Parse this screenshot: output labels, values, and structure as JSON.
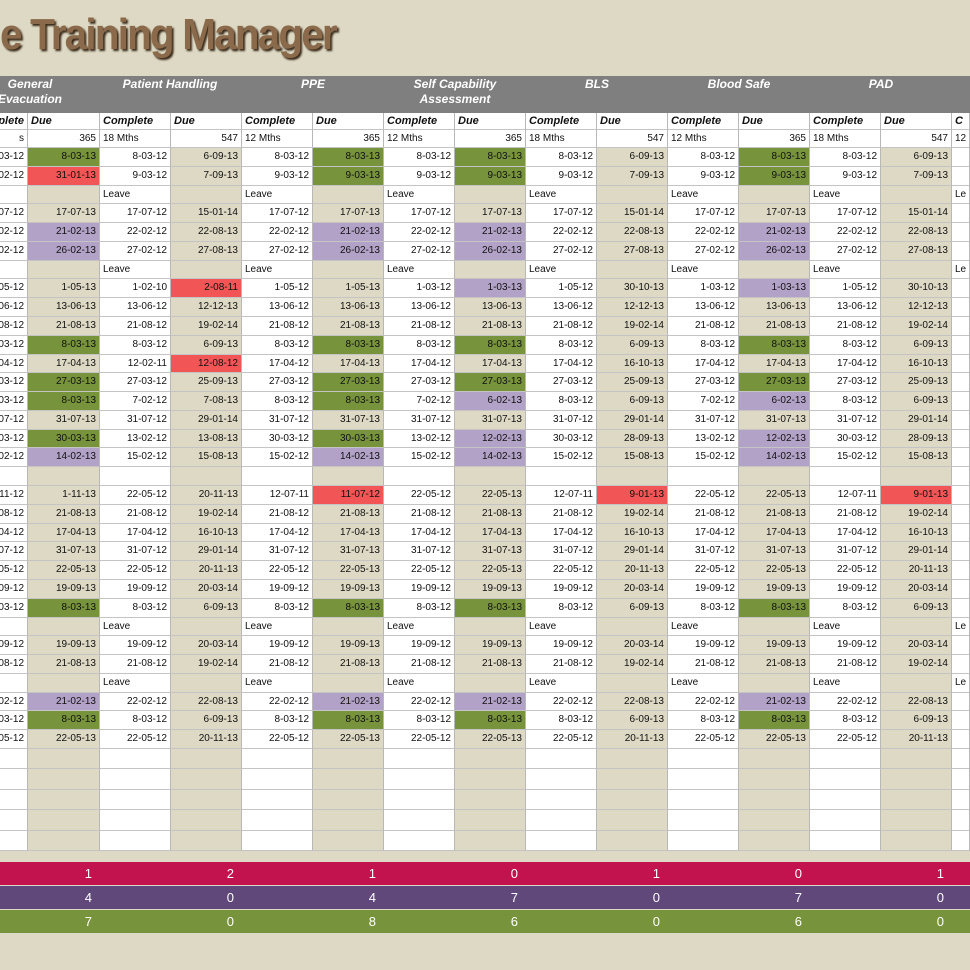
{
  "title": "e Training Manager",
  "fills": {
    "green": "#77933c",
    "red": "#f25555",
    "purple": "#b3a2c7"
  },
  "groups": [
    {
      "lines": [
        "General",
        "Evacuation"
      ]
    },
    {
      "lines": [
        "Patient Handling"
      ]
    },
    {
      "lines": [
        "PPE"
      ]
    },
    {
      "lines": [
        "Self Capability",
        "Assessment"
      ]
    },
    {
      "lines": [
        "BLS"
      ]
    },
    {
      "lines": [
        "Blood Safe"
      ]
    },
    {
      "lines": [
        "PAD"
      ]
    }
  ],
  "subheader": [
    "plete",
    "Due",
    "Complete",
    "Due",
    "Complete",
    "Due",
    "Complete",
    "Due",
    "Complete",
    "Due",
    "Complete",
    "Due",
    "Complete",
    "Due",
    "C"
  ],
  "frequency": [
    "s",
    365,
    "18 Mths",
    547,
    "12 Mths",
    365,
    "12 Mths",
    365,
    "18 Mths",
    547,
    "12 Mths",
    365,
    "18 Mths",
    547,
    "12"
  ],
  "rows": [
    [
      "-03-12",
      {
        "text": "8-03-13",
        "fill": "green"
      },
      "8-03-12",
      "6-09-13",
      "8-03-12",
      {
        "text": "8-03-13",
        "fill": "green"
      },
      "8-03-12",
      {
        "text": "8-03-13",
        "fill": "green"
      },
      "8-03-12",
      "6-09-13",
      "8-03-12",
      {
        "text": "8-03-13",
        "fill": "green"
      },
      "8-03-12",
      "6-09-13",
      null
    ],
    [
      "-02-12",
      {
        "text": "31-01-13",
        "fill": "red"
      },
      "9-03-12",
      "7-09-13",
      "9-03-12",
      {
        "text": "9-03-13",
        "fill": "green"
      },
      "9-03-12",
      {
        "text": "9-03-13",
        "fill": "green"
      },
      "9-03-12",
      "7-09-13",
      "9-03-12",
      {
        "text": "9-03-13",
        "fill": "green"
      },
      "9-03-12",
      "7-09-13",
      null
    ],
    [
      null,
      null,
      "Leave",
      null,
      "Leave",
      null,
      "Leave",
      null,
      "Leave",
      null,
      "Leave",
      null,
      "Leave",
      null,
      "Le"
    ],
    [
      "-07-12",
      "17-07-13",
      "17-07-12",
      "15-01-14",
      "17-07-12",
      "17-07-13",
      "17-07-12",
      "17-07-13",
      "17-07-12",
      "15-01-14",
      "17-07-12",
      "17-07-13",
      "17-07-12",
      "15-01-14",
      null
    ],
    [
      "-02-12",
      {
        "text": "21-02-13",
        "fill": "purple"
      },
      "22-02-12",
      "22-08-13",
      "22-02-12",
      {
        "text": "21-02-13",
        "fill": "purple"
      },
      "22-02-12",
      {
        "text": "21-02-13",
        "fill": "purple"
      },
      "22-02-12",
      "22-08-13",
      "22-02-12",
      {
        "text": "21-02-13",
        "fill": "purple"
      },
      "22-02-12",
      "22-08-13",
      null
    ],
    [
      "-02-12",
      {
        "text": "26-02-13",
        "fill": "purple"
      },
      "27-02-12",
      "27-08-13",
      "27-02-12",
      {
        "text": "26-02-13",
        "fill": "purple"
      },
      "27-02-12",
      {
        "text": "26-02-13",
        "fill": "purple"
      },
      "27-02-12",
      "27-08-13",
      "27-02-12",
      {
        "text": "26-02-13",
        "fill": "purple"
      },
      "27-02-12",
      "27-08-13",
      null
    ],
    [
      null,
      null,
      "Leave",
      null,
      "Leave",
      null,
      "Leave",
      null,
      "Leave",
      null,
      "Leave",
      null,
      "Leave",
      null,
      "Le"
    ],
    [
      "-05-12",
      "1-05-13",
      "1-02-10",
      {
        "text": "2-08-11",
        "fill": "red"
      },
      "1-05-12",
      "1-05-13",
      "1-03-12",
      {
        "text": "1-03-13",
        "fill": "purple"
      },
      "1-05-12",
      "30-10-13",
      "1-03-12",
      {
        "text": "1-03-13",
        "fill": "purple"
      },
      "1-05-12",
      "30-10-13",
      null
    ],
    [
      "-06-12",
      "13-06-13",
      "13-06-12",
      "12-12-13",
      "13-06-12",
      "13-06-13",
      "13-06-12",
      "13-06-13",
      "13-06-12",
      "12-12-13",
      "13-06-12",
      "13-06-13",
      "13-06-12",
      "12-12-13",
      null
    ],
    [
      "-08-12",
      "21-08-13",
      "21-08-12",
      "19-02-14",
      "21-08-12",
      "21-08-13",
      "21-08-12",
      "21-08-13",
      "21-08-12",
      "19-02-14",
      "21-08-12",
      "21-08-13",
      "21-08-12",
      "19-02-14",
      null
    ],
    [
      "-03-12",
      {
        "text": "8-03-13",
        "fill": "green"
      },
      "8-03-12",
      "6-09-13",
      "8-03-12",
      {
        "text": "8-03-13",
        "fill": "green"
      },
      "8-03-12",
      {
        "text": "8-03-13",
        "fill": "green"
      },
      "8-03-12",
      "6-09-13",
      "8-03-12",
      {
        "text": "8-03-13",
        "fill": "green"
      },
      "8-03-12",
      "6-09-13",
      null
    ],
    [
      "-04-12",
      "17-04-13",
      "12-02-11",
      {
        "text": "12-08-12",
        "fill": "red"
      },
      "17-04-12",
      "17-04-13",
      "17-04-12",
      "17-04-13",
      "17-04-12",
      "16-10-13",
      "17-04-12",
      "17-04-13",
      "17-04-12",
      "16-10-13",
      null
    ],
    [
      "-03-12",
      {
        "text": "27-03-13",
        "fill": "green"
      },
      "27-03-12",
      "25-09-13",
      "27-03-12",
      {
        "text": "27-03-13",
        "fill": "green"
      },
      "27-03-12",
      {
        "text": "27-03-13",
        "fill": "green"
      },
      "27-03-12",
      "25-09-13",
      "27-03-12",
      {
        "text": "27-03-13",
        "fill": "green"
      },
      "27-03-12",
      "25-09-13",
      null
    ],
    [
      "-03-12",
      {
        "text": "8-03-13",
        "fill": "green"
      },
      "7-02-12",
      "7-08-13",
      "8-03-12",
      {
        "text": "8-03-13",
        "fill": "green"
      },
      "7-02-12",
      {
        "text": "6-02-13",
        "fill": "purple"
      },
      "8-03-12",
      "6-09-13",
      "7-02-12",
      {
        "text": "6-02-13",
        "fill": "purple"
      },
      "8-03-12",
      "6-09-13",
      null
    ],
    [
      "-07-12",
      "31-07-13",
      "31-07-12",
      "29-01-14",
      "31-07-12",
      "31-07-13",
      "31-07-12",
      "31-07-13",
      "31-07-12",
      "29-01-14",
      "31-07-12",
      "31-07-13",
      "31-07-12",
      "29-01-14",
      null
    ],
    [
      "-03-12",
      {
        "text": "30-03-13",
        "fill": "green"
      },
      "13-02-12",
      "13-08-13",
      "30-03-12",
      {
        "text": "30-03-13",
        "fill": "green"
      },
      "13-02-12",
      {
        "text": "12-02-13",
        "fill": "purple"
      },
      "30-03-12",
      "28-09-13",
      "13-02-12",
      {
        "text": "12-02-13",
        "fill": "purple"
      },
      "30-03-12",
      "28-09-13",
      null
    ],
    [
      "-02-12",
      {
        "text": "14-02-13",
        "fill": "purple"
      },
      "15-02-12",
      "15-08-13",
      "15-02-12",
      {
        "text": "14-02-13",
        "fill": "purple"
      },
      "15-02-12",
      {
        "text": "14-02-13",
        "fill": "purple"
      },
      "15-02-12",
      "15-08-13",
      "15-02-12",
      {
        "text": "14-02-13",
        "fill": "purple"
      },
      "15-02-12",
      "15-08-13",
      null
    ],
    [],
    [
      "-11-12",
      "1-11-13",
      "22-05-12",
      "20-11-13",
      "12-07-11",
      {
        "text": "11-07-12",
        "fill": "red"
      },
      "22-05-12",
      "22-05-13",
      "12-07-11",
      {
        "text": "9-01-13",
        "fill": "red"
      },
      "22-05-12",
      "22-05-13",
      "12-07-11",
      {
        "text": "9-01-13",
        "fill": "red"
      },
      null
    ],
    [
      "-08-12",
      "21-08-13",
      "21-08-12",
      "19-02-14",
      "21-08-12",
      "21-08-13",
      "21-08-12",
      "21-08-13",
      "21-08-12",
      "19-02-14",
      "21-08-12",
      "21-08-13",
      "21-08-12",
      "19-02-14",
      null
    ],
    [
      "-04-12",
      "17-04-13",
      "17-04-12",
      "16-10-13",
      "17-04-12",
      "17-04-13",
      "17-04-12",
      "17-04-13",
      "17-04-12",
      "16-10-13",
      "17-04-12",
      "17-04-13",
      "17-04-12",
      "16-10-13",
      null
    ],
    [
      "-07-12",
      "31-07-13",
      "31-07-12",
      "29-01-14",
      "31-07-12",
      "31-07-13",
      "31-07-12",
      "31-07-13",
      "31-07-12",
      "29-01-14",
      "31-07-12",
      "31-07-13",
      "31-07-12",
      "29-01-14",
      null
    ],
    [
      "-05-12",
      "22-05-13",
      "22-05-12",
      "20-11-13",
      "22-05-12",
      "22-05-13",
      "22-05-12",
      "22-05-13",
      "22-05-12",
      "20-11-13",
      "22-05-12",
      "22-05-13",
      "22-05-12",
      "20-11-13",
      null
    ],
    [
      "-09-12",
      "19-09-13",
      "19-09-12",
      "20-03-14",
      "19-09-12",
      "19-09-13",
      "19-09-12",
      "19-09-13",
      "19-09-12",
      "20-03-14",
      "19-09-12",
      "19-09-13",
      "19-09-12",
      "20-03-14",
      null
    ],
    [
      "-03-12",
      {
        "text": "8-03-13",
        "fill": "green"
      },
      "8-03-12",
      "6-09-13",
      "8-03-12",
      {
        "text": "8-03-13",
        "fill": "green"
      },
      "8-03-12",
      {
        "text": "8-03-13",
        "fill": "green"
      },
      "8-03-12",
      "6-09-13",
      "8-03-12",
      {
        "text": "8-03-13",
        "fill": "green"
      },
      "8-03-12",
      "6-09-13",
      null
    ],
    [
      null,
      null,
      "Leave",
      null,
      "Leave",
      null,
      "Leave",
      null,
      "Leave",
      null,
      "Leave",
      null,
      "Leave",
      null,
      "Le"
    ],
    [
      "-09-12",
      "19-09-13",
      "19-09-12",
      "20-03-14",
      "19-09-12",
      "19-09-13",
      "19-09-12",
      "19-09-13",
      "19-09-12",
      "20-03-14",
      "19-09-12",
      "19-09-13",
      "19-09-12",
      "20-03-14",
      null
    ],
    [
      "-08-12",
      "21-08-13",
      "21-08-12",
      "19-02-14",
      "21-08-12",
      "21-08-13",
      "21-08-12",
      "21-08-13",
      "21-08-12",
      "19-02-14",
      "21-08-12",
      "21-08-13",
      "21-08-12",
      "19-02-14",
      null
    ],
    [
      null,
      null,
      "Leave",
      null,
      "Leave",
      null,
      "Leave",
      null,
      "Leave",
      null,
      "Leave",
      null,
      "Leave",
      null,
      "Le"
    ],
    [
      "-02-12",
      {
        "text": "21-02-13",
        "fill": "purple"
      },
      "22-02-12",
      "22-08-13",
      "22-02-12",
      {
        "text": "21-02-13",
        "fill": "purple"
      },
      "22-02-12",
      {
        "text": "21-02-13",
        "fill": "purple"
      },
      "22-02-12",
      "22-08-13",
      "22-02-12",
      {
        "text": "21-02-13",
        "fill": "purple"
      },
      "22-02-12",
      "22-08-13",
      null
    ],
    [
      "-03-12",
      {
        "text": "8-03-13",
        "fill": "green"
      },
      "8-03-12",
      "6-09-13",
      "8-03-12",
      {
        "text": "8-03-13",
        "fill": "green"
      },
      "8-03-12",
      {
        "text": "8-03-13",
        "fill": "green"
      },
      "8-03-12",
      "6-09-13",
      "8-03-12",
      {
        "text": "8-03-13",
        "fill": "green"
      },
      "8-03-12",
      "6-09-13",
      null
    ],
    [
      "-05-12",
      "22-05-13",
      "22-05-12",
      "20-11-13",
      "22-05-12",
      "22-05-13",
      "22-05-12",
      "22-05-13",
      "22-05-12",
      "20-11-13",
      "22-05-12",
      "22-05-13",
      "22-05-12",
      "20-11-13",
      null
    ]
  ],
  "totals": [
    {
      "color": "#c2134f",
      "values": [
        1,
        2,
        1,
        0,
        1,
        0,
        1
      ]
    },
    {
      "color": "#60497a",
      "values": [
        4,
        0,
        4,
        7,
        0,
        7,
        0
      ]
    },
    {
      "color": "#77933c",
      "values": [
        7,
        0,
        8,
        6,
        0,
        6,
        0
      ]
    }
  ]
}
